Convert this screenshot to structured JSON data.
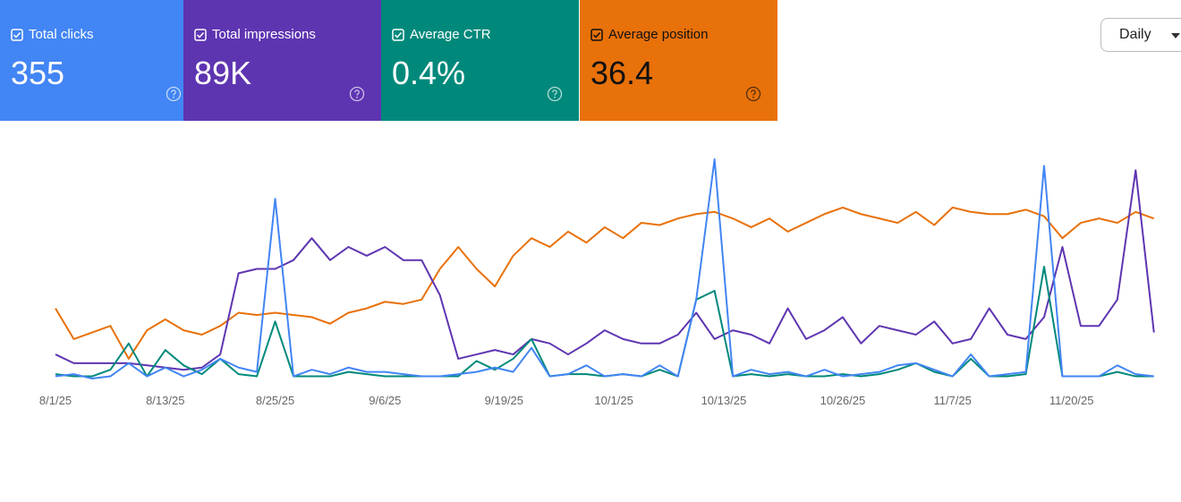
{
  "cards": [
    {
      "value": "355"
    },
    {
      "value": "89K"
    },
    {
      "value": "0.4%"
    },
    {
      "value": "36.4"
    }
  ],
  "dropdown": "Daily",
  "chart_data": {
    "type": "line",
    "x": [
      0,
      2,
      4,
      6,
      8,
      10,
      12,
      14,
      16,
      18,
      20,
      22,
      24,
      26,
      28,
      30,
      32,
      34,
      36,
      38,
      40,
      42,
      44,
      46,
      48,
      50,
      52,
      54,
      56,
      58,
      60,
      62,
      64,
      66,
      68,
      70,
      72,
      74,
      76,
      78,
      80,
      82,
      84,
      86,
      88,
      90,
      92,
      94,
      96,
      98,
      100,
      102,
      104,
      106,
      108,
      110,
      112,
      114,
      116,
      118,
      120
    ],
    "xlim": [
      0,
      121
    ],
    "xticks": [
      {
        "value": 0,
        "label": "8/1/25"
      },
      {
        "value": 12,
        "label": "8/13/25"
      },
      {
        "value": 24,
        "label": "8/25/25"
      },
      {
        "value": 36,
        "label": "9/6/25"
      },
      {
        "value": 49,
        "label": "9/19/25"
      },
      {
        "value": 61,
        "label": "10/1/25"
      },
      {
        "value": 73,
        "label": "10/13/25"
      },
      {
        "value": 86,
        "label": "10/26/25"
      },
      {
        "value": 98,
        "label": "11/7/25"
      },
      {
        "value": 111,
        "label": "11/20/25"
      }
    ],
    "ylim": [
      0,
      100
    ],
    "series": [
      {
        "name": "Total clicks",
        "color": "#4285f4",
        "text_color": "#ffffff",
        "values": [
          1,
          2,
          0,
          1,
          7,
          1,
          5,
          1,
          4,
          9,
          5,
          3,
          82,
          1,
          4,
          2,
          5,
          3,
          3,
          2,
          1,
          1,
          2,
          3,
          5,
          3,
          14,
          1,
          2,
          6,
          1,
          2,
          1,
          6,
          1,
          36,
          100,
          1,
          4,
          2,
          3,
          1,
          4,
          1,
          2,
          3,
          6,
          7,
          4,
          1,
          11,
          1,
          2,
          3,
          97,
          1,
          1,
          1,
          6,
          2,
          1
        ]
      },
      {
        "name": "Total impressions",
        "color": "#5e35b1",
        "text_color": "#ffffff",
        "values": [
          11,
          7,
          7,
          7,
          7,
          6,
          5,
          4,
          5,
          11,
          48,
          50,
          50,
          54,
          64,
          54,
          60,
          56,
          60,
          54,
          54,
          38,
          9,
          11,
          13,
          11,
          18,
          16,
          11,
          16,
          22,
          18,
          16,
          16,
          20,
          30,
          18,
          22,
          20,
          16,
          32,
          18,
          22,
          28,
          16,
          24,
          22,
          20,
          26,
          16,
          18,
          32,
          20,
          18,
          28,
          60,
          24,
          24,
          36,
          95,
          21
        ]
      },
      {
        "name": "Average CTR",
        "color": "#00897b",
        "text_color": "#ffffff",
        "values": [
          2,
          1,
          1,
          4,
          16,
          1,
          13,
          6,
          2,
          9,
          2,
          1,
          26,
          1,
          1,
          1,
          3,
          2,
          1,
          1,
          1,
          1,
          1,
          8,
          4,
          9,
          18,
          1,
          2,
          2,
          1,
          2,
          1,
          4,
          1,
          36,
          40,
          1,
          2,
          1,
          2,
          1,
          1,
          2,
          1,
          2,
          4,
          7,
          3,
          1,
          9,
          1,
          1,
          2,
          51,
          1,
          1,
          1,
          3,
          1,
          1
        ]
      },
      {
        "name": "Average position",
        "color": "#e8710a",
        "text_color": "#111111",
        "values": [
          32,
          18,
          21,
          24,
          9,
          22,
          27,
          22,
          20,
          24,
          30,
          29,
          30,
          29,
          28,
          25,
          30,
          32,
          35,
          34,
          36,
          50,
          60,
          50,
          42,
          56,
          64,
          60,
          67,
          62,
          69,
          64,
          71,
          70,
          73,
          75,
          76,
          73,
          69,
          73,
          67,
          71,
          75,
          78,
          75,
          73,
          71,
          76,
          70,
          78,
          76,
          75,
          75,
          77,
          74,
          64,
          71,
          73,
          71,
          76,
          73
        ]
      }
    ]
  }
}
